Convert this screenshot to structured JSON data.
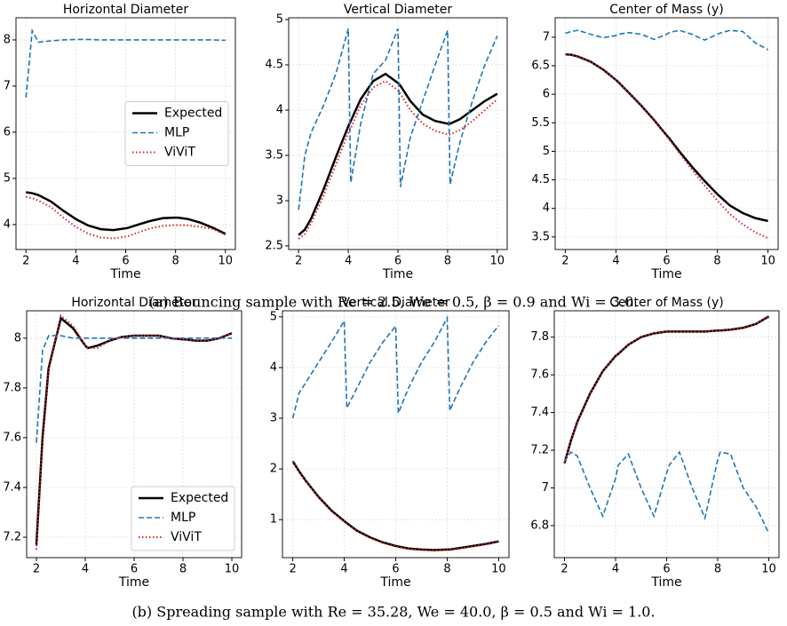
{
  "captions": [
    "(a) Bouncing sample with Re = 2.5, We = 0.5, β = 0.9 and Wi = 3.0.",
    "(b) Spreading sample with Re = 35.28, We = 40.0, β = 0.5 and Wi = 1.0."
  ],
  "chart_data": [
    {
      "type": "line",
      "title": "Horizontal Diameter",
      "xlabel": "Time",
      "grid": true,
      "legend": "center right",
      "x": [
        2,
        2.25,
        2.5,
        3,
        3.5,
        4,
        4.1,
        4.5,
        5,
        5.5,
        6,
        6.1,
        6.5,
        7,
        7.5,
        8,
        8.1,
        8.5,
        9,
        9.5,
        10
      ],
      "xlim": [
        1.6,
        10.4
      ],
      "xticks": [
        2,
        4,
        6,
        8,
        10
      ],
      "ylim": [
        3.46,
        8.48
      ],
      "yticks": [
        4,
        5,
        6,
        7,
        8
      ],
      "series": [
        {
          "name": "Expected",
          "color": "#000000",
          "dash": "solid",
          "values": [
            4.7,
            4.68,
            4.64,
            4.5,
            4.3,
            4.12,
            4.09,
            3.98,
            3.9,
            3.88,
            3.92,
            3.93,
            4.0,
            4.08,
            4.14,
            4.15,
            4.15,
            4.12,
            4.04,
            3.93,
            3.8
          ]
        },
        {
          "name": "MLP",
          "color": "#1f77b4",
          "dash": "dashed",
          "values": [
            6.75,
            8.2,
            7.95,
            7.98,
            8.0,
            8.01,
            8.01,
            8.01,
            8.0,
            8.0,
            8.0,
            8.0,
            8.0,
            8.0,
            8.0,
            8.0,
            8.0,
            8.0,
            8.0,
            8.0,
            7.99
          ]
        },
        {
          "name": "ViViT",
          "color": "#d62728",
          "dash": "dotted",
          "values": [
            4.6,
            4.57,
            4.52,
            4.38,
            4.15,
            3.95,
            3.92,
            3.8,
            3.72,
            3.7,
            3.74,
            3.75,
            3.83,
            3.92,
            3.97,
            3.99,
            3.99,
            3.98,
            3.95,
            3.9,
            3.78
          ]
        }
      ]
    },
    {
      "type": "line",
      "title": "Vertical Diameter",
      "xlabel": "Time",
      "grid": true,
      "x": [
        2,
        2.25,
        2.5,
        3,
        3.5,
        4,
        4.1,
        4.5,
        5,
        5.5,
        6,
        6.1,
        6.5,
        7,
        7.5,
        8,
        8.1,
        8.5,
        9,
        9.5,
        10
      ],
      "xlim": [
        1.6,
        10.4
      ],
      "xticks": [
        2,
        4,
        6,
        8,
        10
      ],
      "ylim": [
        2.46,
        5.02
      ],
      "yticks": [
        2.5,
        3.0,
        3.5,
        4.0,
        4.5,
        5.0
      ],
      "series": [
        {
          "name": "Expected",
          "color": "#000000",
          "dash": "solid",
          "values": [
            2.62,
            2.68,
            2.8,
            3.12,
            3.48,
            3.82,
            3.88,
            4.12,
            4.32,
            4.4,
            4.3,
            4.27,
            4.1,
            3.95,
            3.88,
            3.85,
            3.85,
            3.9,
            4.0,
            4.1,
            4.18
          ]
        },
        {
          "name": "MLP",
          "color": "#1f77b4",
          "dash": "dashed",
          "values": [
            2.9,
            3.5,
            3.75,
            4.05,
            4.4,
            4.9,
            3.2,
            3.85,
            4.4,
            4.55,
            4.9,
            3.15,
            3.7,
            4.1,
            4.5,
            4.88,
            3.18,
            3.65,
            4.1,
            4.5,
            4.82
          ]
        },
        {
          "name": "ViViT",
          "color": "#d62728",
          "dash": "dotted",
          "values": [
            2.58,
            2.63,
            2.75,
            3.05,
            3.4,
            3.75,
            3.8,
            4.05,
            4.25,
            4.32,
            4.22,
            4.18,
            4.0,
            3.85,
            3.77,
            3.73,
            3.73,
            3.78,
            3.88,
            4.0,
            4.12
          ]
        }
      ]
    },
    {
      "type": "line",
      "title": "Center of Mass (y)",
      "xlabel": "Time",
      "grid": true,
      "x": [
        2,
        2.25,
        2.5,
        3,
        3.5,
        4,
        4.1,
        4.5,
        5,
        5.5,
        6,
        6.1,
        6.5,
        7,
        7.5,
        8,
        8.1,
        8.5,
        9,
        9.5,
        10
      ],
      "xlim": [
        1.6,
        10.4
      ],
      "xticks": [
        2,
        4,
        6,
        8,
        10
      ],
      "ylim": [
        3.28,
        7.34
      ],
      "yticks": [
        3.5,
        4.0,
        4.5,
        5.0,
        5.5,
        6.0,
        6.5,
        7.0
      ],
      "series": [
        {
          "name": "Expected",
          "color": "#000000",
          "dash": "solid",
          "values": [
            6.7,
            6.69,
            6.66,
            6.57,
            6.43,
            6.25,
            6.21,
            6.03,
            5.8,
            5.55,
            5.28,
            5.23,
            5.0,
            4.73,
            4.48,
            4.25,
            4.21,
            4.05,
            3.92,
            3.83,
            3.78
          ]
        },
        {
          "name": "MLP",
          "color": "#1f77b4",
          "dash": "dashed",
          "values": [
            7.07,
            7.1,
            7.12,
            7.05,
            6.99,
            7.03,
            7.05,
            7.08,
            7.05,
            6.96,
            7.05,
            7.08,
            7.12,
            7.05,
            6.95,
            7.05,
            7.07,
            7.12,
            7.1,
            6.9,
            6.78
          ]
        },
        {
          "name": "ViViT",
          "color": "#d62728",
          "dash": "dotted",
          "values": [
            6.7,
            6.69,
            6.66,
            6.57,
            6.43,
            6.25,
            6.21,
            6.03,
            5.8,
            5.55,
            5.27,
            5.21,
            4.97,
            4.68,
            4.4,
            4.14,
            4.09,
            3.9,
            3.72,
            3.58,
            3.48
          ]
        }
      ]
    },
    {
      "type": "line",
      "title": "Horizontal Diameter",
      "xlabel": "Time",
      "grid": true,
      "legend": "lower right",
      "x": [
        2,
        2.25,
        2.5,
        3,
        3.5,
        4,
        4.1,
        4.5,
        5,
        5.5,
        6,
        6.1,
        6.5,
        7,
        7.5,
        8,
        8.1,
        8.5,
        9,
        9.5,
        10
      ],
      "xlim": [
        1.6,
        10.4
      ],
      "xticks": [
        2,
        4,
        6,
        8,
        10
      ],
      "ylim": [
        7.118,
        8.11
      ],
      "yticks": [
        7.2,
        7.4,
        7.6,
        7.8,
        8.0
      ],
      "series": [
        {
          "name": "Expected",
          "color": "#000000",
          "dash": "solid",
          "values": [
            7.17,
            7.6,
            7.88,
            8.08,
            8.04,
            7.97,
            7.96,
            7.97,
            7.99,
            8.005,
            8.01,
            8.01,
            8.01,
            8.01,
            8.0,
            7.995,
            7.995,
            7.99,
            7.99,
            8.0,
            8.02
          ]
        },
        {
          "name": "MLP",
          "color": "#1f77b4",
          "dash": "dashed",
          "values": [
            7.58,
            7.95,
            8.01,
            8.01,
            8.0,
            8.0,
            8.0,
            8.0,
            8.0,
            8.0,
            8.0,
            8.0,
            8.0,
            8.0,
            8.0,
            8.0,
            8.0,
            8.0,
            8.0,
            8.0,
            8.0
          ]
        },
        {
          "name": "ViViT",
          "color": "#d62728",
          "dash": "dotted",
          "values": [
            7.15,
            7.58,
            7.87,
            8.09,
            8.05,
            7.97,
            7.96,
            7.96,
            7.99,
            8.005,
            8.01,
            8.01,
            8.01,
            8.01,
            8.0,
            7.995,
            7.995,
            7.99,
            7.99,
            8.0,
            8.02
          ]
        }
      ]
    },
    {
      "type": "line",
      "title": "Vertical Diameter",
      "xlabel": "Time",
      "grid": true,
      "x": [
        2,
        2.25,
        2.5,
        3,
        3.5,
        4,
        4.1,
        4.5,
        5,
        5.5,
        6,
        6.1,
        6.5,
        7,
        7.5,
        8,
        8.1,
        8.5,
        9,
        9.5,
        10
      ],
      "xlim": [
        1.6,
        10.4
      ],
      "xticks": [
        2,
        4,
        6,
        8,
        10
      ],
      "ylim": [
        0.25,
        5.12
      ],
      "yticks": [
        1,
        2,
        3,
        4,
        5
      ],
      "series": [
        {
          "name": "Expected",
          "color": "#000000",
          "dash": "solid",
          "values": [
            2.15,
            1.95,
            1.77,
            1.45,
            1.18,
            0.97,
            0.93,
            0.78,
            0.65,
            0.55,
            0.48,
            0.47,
            0.43,
            0.41,
            0.4,
            0.41,
            0.41,
            0.44,
            0.48,
            0.52,
            0.57
          ]
        },
        {
          "name": "MLP",
          "color": "#1f77b4",
          "dash": "dashed",
          "values": [
            3.0,
            3.5,
            3.7,
            4.1,
            4.5,
            4.92,
            3.2,
            3.6,
            4.1,
            4.5,
            4.82,
            3.1,
            3.6,
            4.1,
            4.5,
            4.98,
            3.15,
            3.6,
            4.1,
            4.5,
            4.83
          ]
        },
        {
          "name": "ViViT",
          "color": "#d62728",
          "dash": "dotted",
          "values": [
            2.14,
            1.94,
            1.76,
            1.44,
            1.17,
            0.96,
            0.92,
            0.77,
            0.64,
            0.54,
            0.47,
            0.46,
            0.42,
            0.4,
            0.39,
            0.4,
            0.4,
            0.43,
            0.47,
            0.51,
            0.56
          ]
        }
      ]
    },
    {
      "type": "line",
      "title": "Center of Mass (y)",
      "xlabel": "Time",
      "grid": true,
      "x": [
        2,
        2.25,
        2.5,
        3,
        3.5,
        4,
        4.1,
        4.5,
        5,
        5.5,
        6,
        6.1,
        6.5,
        7,
        7.5,
        8,
        8.1,
        8.5,
        9,
        9.5,
        10
      ],
      "xlim": [
        1.6,
        10.4
      ],
      "xticks": [
        2,
        4,
        6,
        8,
        10
      ],
      "ylim": [
        6.63,
        7.94
      ],
      "yticks": [
        6.8,
        7.0,
        7.2,
        7.4,
        7.6,
        7.8
      ],
      "series": [
        {
          "name": "Expected",
          "color": "#000000",
          "dash": "solid",
          "values": [
            7.13,
            7.25,
            7.35,
            7.5,
            7.62,
            7.7,
            7.71,
            7.76,
            7.8,
            7.82,
            7.83,
            7.83,
            7.83,
            7.83,
            7.83,
            7.835,
            7.835,
            7.84,
            7.85,
            7.87,
            7.91
          ]
        },
        {
          "name": "MLP",
          "color": "#1f77b4",
          "dash": "dashed",
          "values": [
            7.14,
            7.19,
            7.17,
            7.0,
            6.85,
            7.05,
            7.12,
            7.18,
            7.0,
            6.85,
            7.08,
            7.12,
            7.19,
            7.0,
            6.84,
            7.15,
            7.19,
            7.18,
            7.0,
            6.9,
            6.76
          ]
        },
        {
          "name": "ViViT",
          "color": "#d62728",
          "dash": "dotted",
          "values": [
            7.13,
            7.25,
            7.35,
            7.5,
            7.62,
            7.7,
            7.71,
            7.76,
            7.8,
            7.82,
            7.83,
            7.83,
            7.83,
            7.83,
            7.83,
            7.835,
            7.835,
            7.84,
            7.85,
            7.87,
            7.91
          ]
        }
      ]
    }
  ]
}
